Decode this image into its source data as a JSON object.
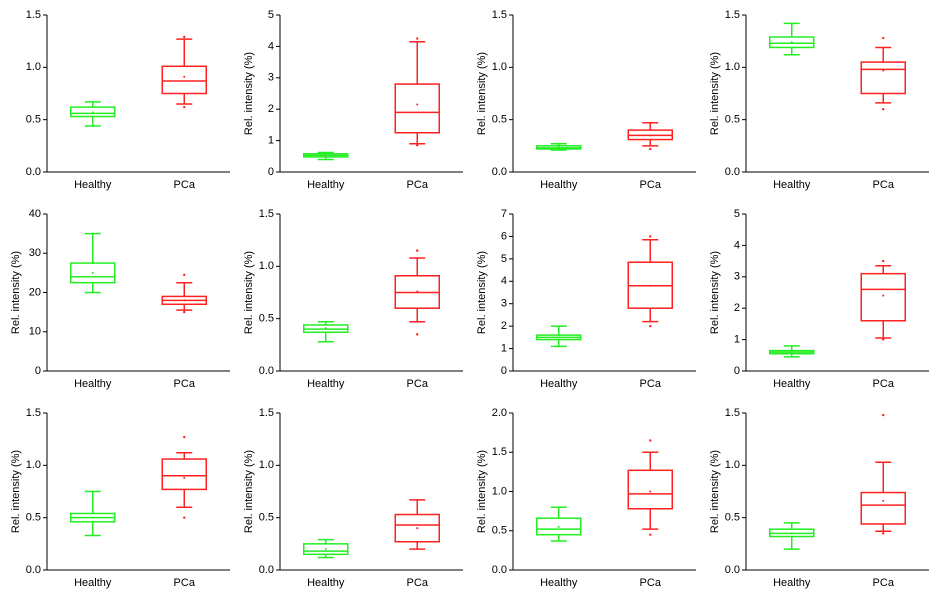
{
  "chart_data": [
    {
      "type": "box",
      "categories": [
        "Healthy",
        "PCa"
      ],
      "colors": [
        "#22ee22",
        "#ff2020"
      ],
      "ylim": [
        0,
        1.5
      ],
      "yticks": [
        {
          "value": 0,
          "label": "0.0"
        },
        0.5,
        {
          "value": 1,
          "label": "1.0"
        },
        1.5
      ],
      "stats": [
        {
          "whislo": 0.44,
          "q1": 0.53,
          "median": 0.56,
          "q3": 0.62,
          "whishi": 0.67,
          "mean": 0.57
        },
        {
          "whislo": 0.65,
          "q1": 0.75,
          "median": 0.87,
          "q3": 1.01,
          "whishi": 1.27,
          "mean": 0.91,
          "min": 0.62,
          "max": 1.29
        }
      ]
    },
    {
      "type": "box",
      "ylabel": "Rel. intensity (%)",
      "categories": [
        "Healthy",
        "PCa"
      ],
      "colors": [
        "#22ee22",
        "#ff2020"
      ],
      "ylim": [
        0,
        5
      ],
      "yticks": [
        0,
        1,
        2,
        3,
        4,
        5
      ],
      "stats": [
        {
          "whislo": 0.4,
          "q1": 0.48,
          "median": 0.53,
          "q3": 0.58,
          "whishi": 0.62,
          "mean": 0.53
        },
        {
          "whislo": 0.9,
          "q1": 1.25,
          "median": 1.9,
          "q3": 2.8,
          "whishi": 4.15,
          "mean": 2.15,
          "min": 0.85,
          "max": 4.25
        }
      ]
    },
    {
      "type": "box",
      "ylabel": "Rel. intensity (%)",
      "categories": [
        "Healthy",
        "PCa"
      ],
      "colors": [
        "#22ee22",
        "#ff2020"
      ],
      "ylim": [
        0,
        1.5
      ],
      "yticks": [
        {
          "value": 0,
          "label": "0.0"
        },
        0.5,
        {
          "value": 1,
          "label": "1.0"
        },
        1.5
      ],
      "stats": [
        {
          "whislo": 0.21,
          "q1": 0.22,
          "median": 0.23,
          "q3": 0.25,
          "whishi": 0.27,
          "mean": 0.24
        },
        {
          "whislo": 0.25,
          "q1": 0.31,
          "median": 0.35,
          "q3": 0.4,
          "whishi": 0.47,
          "mean": 0.35,
          "min": 0.22
        }
      ]
    },
    {
      "type": "box",
      "ylabel": "Rel. intensity (%)",
      "categories": [
        "Healthy",
        "PCa"
      ],
      "colors": [
        "#22ee22",
        "#ff2020"
      ],
      "ylim": [
        0,
        1.5
      ],
      "yticks": [
        {
          "value": 0,
          "label": "0.0"
        },
        0.5,
        {
          "value": 1,
          "label": "1.0"
        },
        1.5
      ],
      "stats": [
        {
          "whislo": 1.12,
          "q1": 1.19,
          "median": 1.23,
          "q3": 1.29,
          "whishi": 1.42,
          "mean": 1.24
        },
        {
          "whislo": 0.66,
          "q1": 0.75,
          "median": 0.98,
          "q3": 1.05,
          "whishi": 1.19,
          "mean": 0.97,
          "min": 0.6,
          "max": 1.28
        }
      ]
    },
    {
      "type": "box",
      "ylabel": "Rel. intensity (%)",
      "categories": [
        "Healthy",
        "PCa"
      ],
      "colors": [
        "#22ee22",
        "#ff2020"
      ],
      "ylim": [
        0,
        40
      ],
      "yticks": [
        0,
        10,
        20,
        30,
        40
      ],
      "stats": [
        {
          "whislo": 20,
          "q1": 22.5,
          "median": 24,
          "q3": 27.5,
          "whishi": 35,
          "mean": 25
        },
        {
          "whislo": 15.5,
          "q1": 17,
          "median": 18,
          "q3": 19,
          "whishi": 22.5,
          "mean": 18,
          "min": 15,
          "max": 24.5
        }
      ]
    },
    {
      "type": "box",
      "ylabel": "Rel. intensity (%)",
      "categories": [
        "Healthy",
        "PCa"
      ],
      "colors": [
        "#22ee22",
        "#ff2020"
      ],
      "ylim": [
        0,
        1.5
      ],
      "yticks": [
        {
          "value": 0,
          "label": "0.0"
        },
        0.5,
        {
          "value": 1,
          "label": "1.0"
        },
        1.5
      ],
      "stats": [
        {
          "whislo": 0.28,
          "q1": 0.37,
          "median": 0.4,
          "q3": 0.44,
          "whishi": 0.47,
          "mean": 0.41
        },
        {
          "whislo": 0.47,
          "q1": 0.6,
          "median": 0.75,
          "q3": 0.91,
          "whishi": 1.08,
          "mean": 0.76,
          "min": 0.35,
          "max": 1.15
        }
      ]
    },
    {
      "type": "box",
      "ylabel": "Rel. intensity (%)",
      "categories": [
        "Healthy",
        "PCa"
      ],
      "colors": [
        "#22ee22",
        "#ff2020"
      ],
      "ylim": [
        0,
        7
      ],
      "yticks": [
        0,
        1,
        2,
        3,
        4,
        5,
        6,
        7
      ],
      "stats": [
        {
          "whislo": 1.1,
          "q1": 1.4,
          "median": 1.5,
          "q3": 1.6,
          "whishi": 2.0,
          "mean": 1.5
        },
        {
          "whislo": 2.2,
          "q1": 2.8,
          "median": 3.8,
          "q3": 4.85,
          "whishi": 5.85,
          "mean": 3.8,
          "min": 2.0,
          "max": 6
        }
      ]
    },
    {
      "type": "box",
      "ylabel": "Rel. intensity (%)",
      "categories": [
        "Healthy",
        "PCa"
      ],
      "colors": [
        "#22ee22",
        "#ff2020"
      ],
      "ylim": [
        0,
        5
      ],
      "yticks": [
        0,
        1,
        2,
        3,
        4,
        5
      ],
      "stats": [
        {
          "whislo": 0.45,
          "q1": 0.55,
          "median": 0.6,
          "q3": 0.65,
          "whishi": 0.8,
          "mean": 0.6
        },
        {
          "whislo": 1.05,
          "q1": 1.6,
          "median": 2.6,
          "q3": 3.1,
          "whishi": 3.35,
          "mean": 2.4,
          "min": 1.0,
          "max": 3.5
        }
      ]
    },
    {
      "type": "box",
      "ylabel": "Rel. intensity (%)",
      "categories": [
        "Healthy",
        "PCa"
      ],
      "colors": [
        "#22ee22",
        "#ff2020"
      ],
      "ylim": [
        0,
        1.5
      ],
      "yticks": [
        {
          "value": 0,
          "label": "0.0"
        },
        0.5,
        {
          "value": 1,
          "label": "1.0"
        },
        1.5
      ],
      "stats": [
        {
          "whislo": 0.33,
          "q1": 0.46,
          "median": 0.5,
          "q3": 0.54,
          "whishi": 0.75,
          "mean": 0.5
        },
        {
          "whislo": 0.6,
          "q1": 0.77,
          "median": 0.9,
          "q3": 1.06,
          "whishi": 1.12,
          "mean": 0.88,
          "min": 0.5,
          "max": 1.27
        }
      ]
    },
    {
      "type": "box",
      "ylabel": "Rel. intensity (%)",
      "categories": [
        "Healthy",
        "PCa"
      ],
      "colors": [
        "#22ee22",
        "#ff2020"
      ],
      "ylim": [
        0,
        1.5
      ],
      "yticks": [
        {
          "value": 0,
          "label": "0.0"
        },
        0.5,
        {
          "value": 1,
          "label": "1.0"
        },
        1.5
      ],
      "stats": [
        {
          "whislo": 0.12,
          "q1": 0.15,
          "median": 0.18,
          "q3": 0.25,
          "whishi": 0.29,
          "mean": 0.2
        },
        {
          "whislo": 0.2,
          "q1": 0.27,
          "median": 0.43,
          "q3": 0.53,
          "whishi": 0.67,
          "mean": 0.4
        }
      ]
    },
    {
      "type": "box",
      "ylabel": "Rel. intensity (%)",
      "categories": [
        "Healthy",
        "PCa"
      ],
      "colors": [
        "#22ee22",
        "#ff2020"
      ],
      "ylim": [
        0,
        2
      ],
      "yticks": [
        {
          "value": 0,
          "label": "0.0"
        },
        0.5,
        {
          "value": 1,
          "label": "1.0"
        },
        1.5,
        {
          "value": 2,
          "label": "2.0"
        }
      ],
      "stats": [
        {
          "whislo": 0.37,
          "q1": 0.45,
          "median": 0.52,
          "q3": 0.66,
          "whishi": 0.8,
          "mean": 0.55
        },
        {
          "whislo": 0.52,
          "q1": 0.78,
          "median": 0.97,
          "q3": 1.27,
          "whishi": 1.5,
          "mean": 1.0,
          "min": 0.45,
          "max": 1.65
        }
      ]
    },
    {
      "type": "box",
      "ylabel": "Rel. intensity (%)",
      "categories": [
        "Healthy",
        "PCa"
      ],
      "colors": [
        "#22ee22",
        "#ff2020"
      ],
      "ylim": [
        0,
        1.5
      ],
      "yticks": [
        {
          "value": 0,
          "label": "0.0"
        },
        0.5,
        {
          "value": 1,
          "label": "1.0"
        },
        1.5
      ],
      "stats": [
        {
          "whislo": 0.2,
          "q1": 0.32,
          "median": 0.35,
          "q3": 0.39,
          "whishi": 0.45,
          "mean": 0.35
        },
        {
          "whislo": 0.37,
          "q1": 0.44,
          "median": 0.62,
          "q3": 0.74,
          "whishi": 1.03,
          "mean": 0.66,
          "min": 0.35,
          "max": 1.48
        }
      ]
    }
  ]
}
